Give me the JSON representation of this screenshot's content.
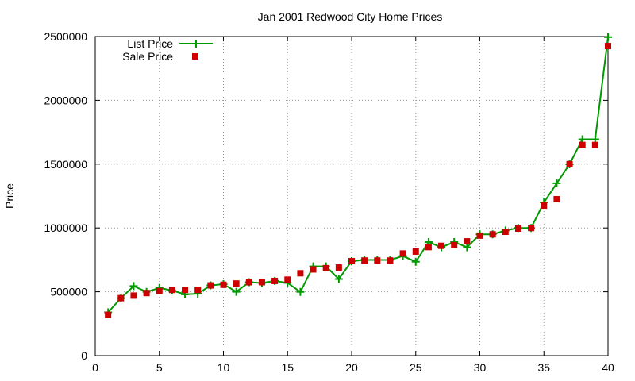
{
  "chart_data": {
    "type": "line",
    "title": "Jan 2001 Redwood City Home Prices",
    "xlabel": "",
    "ylabel": "Price",
    "xlim": [
      0,
      40
    ],
    "ylim": [
      0,
      2500000
    ],
    "xticks": [
      0,
      5,
      10,
      15,
      20,
      25,
      30,
      35,
      40
    ],
    "yticks": [
      0,
      500000,
      1000000,
      1500000,
      2000000,
      2500000
    ],
    "xtick_labels": [
      "0",
      "5",
      "10",
      "15",
      "20",
      "25",
      "30",
      "35",
      "40"
    ],
    "ytick_labels": [
      "0",
      "500000",
      "1000000",
      "1500000",
      "2000000",
      "2500000"
    ],
    "grid": true,
    "legend_position": "top-left",
    "x": [
      1,
      2,
      3,
      4,
      5,
      6,
      7,
      8,
      9,
      10,
      11,
      12,
      13,
      14,
      15,
      16,
      17,
      18,
      19,
      20,
      21,
      22,
      23,
      24,
      25,
      26,
      27,
      28,
      29,
      30,
      31,
      32,
      33,
      34,
      35,
      36,
      37,
      38,
      39,
      40
    ],
    "series": [
      {
        "name": "List Price",
        "style": "line-plus",
        "color": "#009900",
        "values": [
          339000,
          450000,
          545000,
          499000,
          530000,
          510000,
          480000,
          485000,
          550000,
          560000,
          500000,
          575000,
          569000,
          585000,
          570000,
          499000,
          699000,
          699000,
          600000,
          740000,
          749000,
          749000,
          749000,
          780000,
          735000,
          889000,
          849000,
          889000,
          849000,
          950000,
          950000,
          980000,
          1000000,
          1000000,
          1200000,
          1350000,
          1499000,
          1695000,
          1695000,
          2495000
        ]
      },
      {
        "name": "Sale Price",
        "style": "square-points",
        "color": "#cc0000",
        "values": [
          320000,
          450000,
          470000,
          490000,
          505000,
          515000,
          515000,
          515000,
          550000,
          555000,
          565000,
          575000,
          575000,
          585000,
          595000,
          645000,
          675000,
          685000,
          690000,
          740000,
          745000,
          745000,
          745000,
          800000,
          815000,
          850000,
          860000,
          865000,
          895000,
          940000,
          950000,
          970000,
          995000,
          1000000,
          1175000,
          1225000,
          1500000,
          1650000,
          1650000,
          2425000
        ]
      }
    ]
  }
}
